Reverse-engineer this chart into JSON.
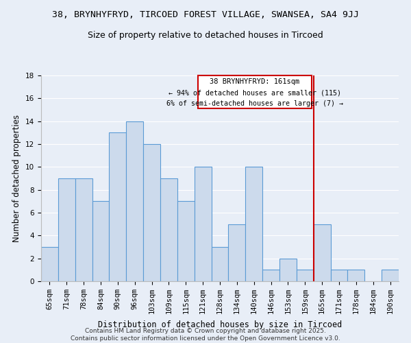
{
  "title": "38, BRYNHYFRYD, TIRCOED FOREST VILLAGE, SWANSEA, SA4 9JJ",
  "subtitle": "Size of property relative to detached houses in Tircoed",
  "xlabel": "Distribution of detached houses by size in Tircoed",
  "ylabel": "Number of detached properties",
  "categories": [
    "65sqm",
    "71sqm",
    "78sqm",
    "84sqm",
    "90sqm",
    "96sqm",
    "103sqm",
    "109sqm",
    "115sqm",
    "121sqm",
    "128sqm",
    "134sqm",
    "140sqm",
    "146sqm",
    "153sqm",
    "159sqm",
    "165sqm",
    "171sqm",
    "178sqm",
    "184sqm",
    "190sqm"
  ],
  "values": [
    3,
    9,
    9,
    7,
    13,
    14,
    12,
    9,
    7,
    10,
    3,
    5,
    10,
    1,
    2,
    1,
    5,
    1,
    1,
    0,
    1
  ],
  "bar_color": "#ccdaec",
  "bar_edge_color": "#5b9bd5",
  "subject_line_color": "#cc0000",
  "subject_label": "38 BRYNHYFRYD: 161sqm",
  "annotation_line1": "← 94% of detached houses are smaller (115)",
  "annotation_line2": "6% of semi-detached houses are larger (7) →",
  "annotation_box_color": "#cc0000",
  "ylim": [
    0,
    18
  ],
  "yticks": [
    0,
    2,
    4,
    6,
    8,
    10,
    12,
    14,
    16,
    18
  ],
  "footer_line1": "Contains HM Land Registry data © Crown copyright and database right 2025.",
  "footer_line2": "Contains public sector information licensed under the Open Government Licence v3.0.",
  "background_color": "#e8eef7",
  "plot_bg_color": "#e8eef7",
  "grid_color": "#ffffff",
  "title_fontsize": 9.5,
  "subtitle_fontsize": 9,
  "axis_label_fontsize": 8.5,
  "tick_fontsize": 7.5,
  "footer_fontsize": 6.5
}
